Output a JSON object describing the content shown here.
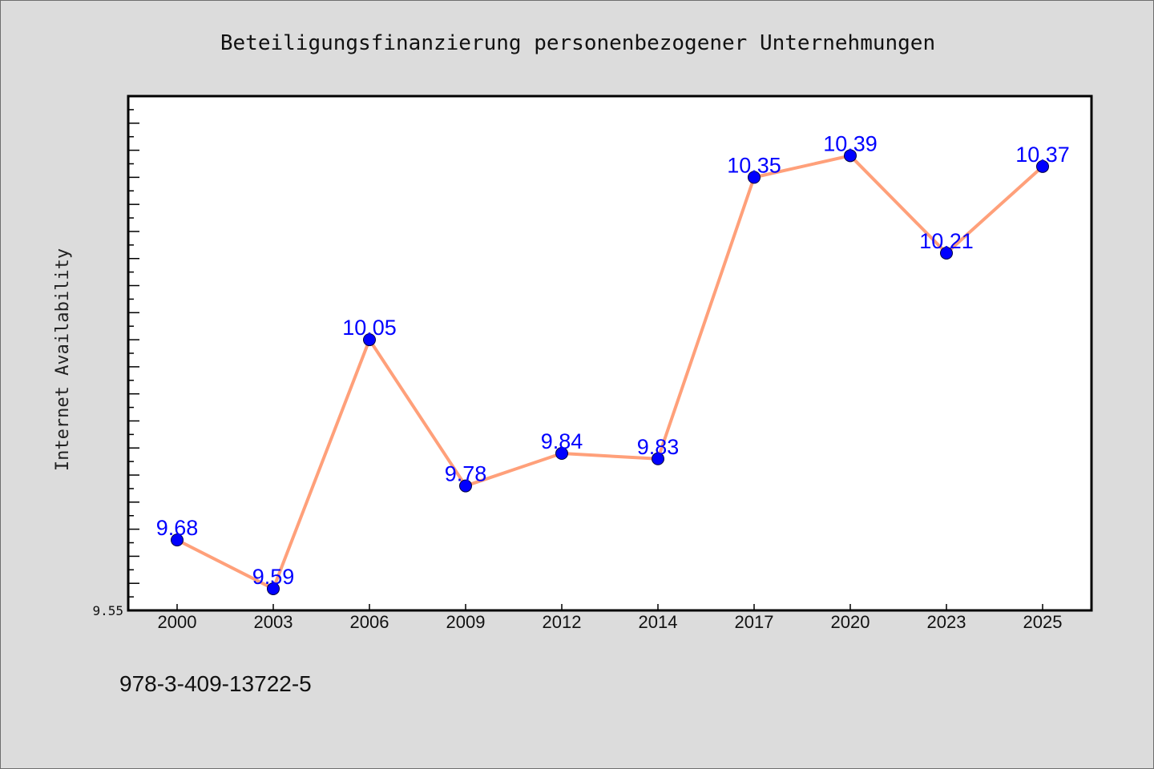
{
  "chart_data": {
    "type": "line",
    "title": "Beteiligungsfinanzierung personenbezogener Unternehmungen",
    "xlabel": "",
    "ylabel": "Internet Availability",
    "categories": [
      "2000",
      "2003",
      "2006",
      "2009",
      "2012",
      "2014",
      "2017",
      "2020",
      "2023",
      "2025"
    ],
    "series": [
      {
        "values": [
          9.68,
          9.59,
          10.05,
          9.78,
          9.84,
          9.83,
          10.35,
          10.39,
          10.21,
          10.37
        ],
        "data_labels": [
          "9.68",
          "9.59",
          "10.05",
          "9.78",
          "9.84",
          "9.83",
          "10.35",
          "10.39",
          "10.21",
          "10.37"
        ],
        "line_color": "#ffa07a",
        "marker_color": "#0000ff",
        "label_color": "#0000ff"
      }
    ],
    "ylim": [
      9.55,
      10.5
    ],
    "y_tick_labels": [
      "9.55"
    ],
    "grid": false,
    "legend": "none"
  },
  "footer": {
    "text": "978-3-409-13722-5"
  },
  "colors": {
    "background": "#dcdcdc",
    "plot_background": "#ffffff",
    "axis": "#000000"
  }
}
